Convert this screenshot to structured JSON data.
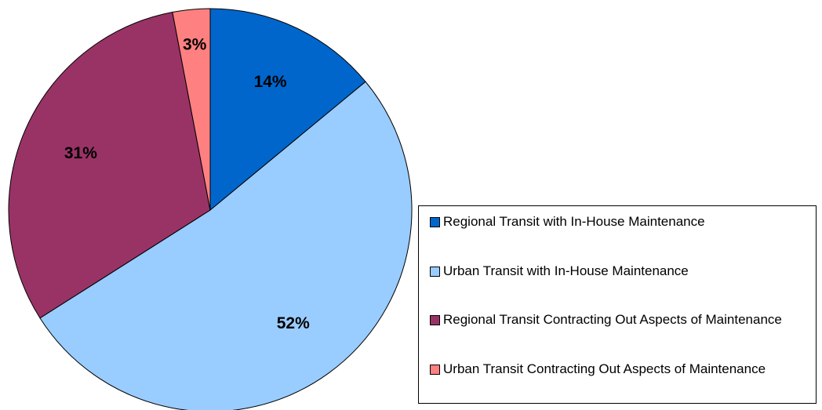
{
  "chart_data": {
    "type": "pie",
    "categories": [
      "Regional Transit with In-House Maintenance",
      "Urban Transit with In-House Maintenance",
      "Regional Transit Contracting Out Aspects of Maintenance",
      "Urban Transit Contracting Out Aspects of Maintenance"
    ],
    "values": [
      14,
      52,
      31,
      3
    ],
    "value_labels": [
      "14%",
      "52%",
      "31%",
      "3%"
    ],
    "colors": [
      "#0066cc",
      "#99ccff",
      "#993366",
      "#ff8080"
    ],
    "legend": "right"
  }
}
